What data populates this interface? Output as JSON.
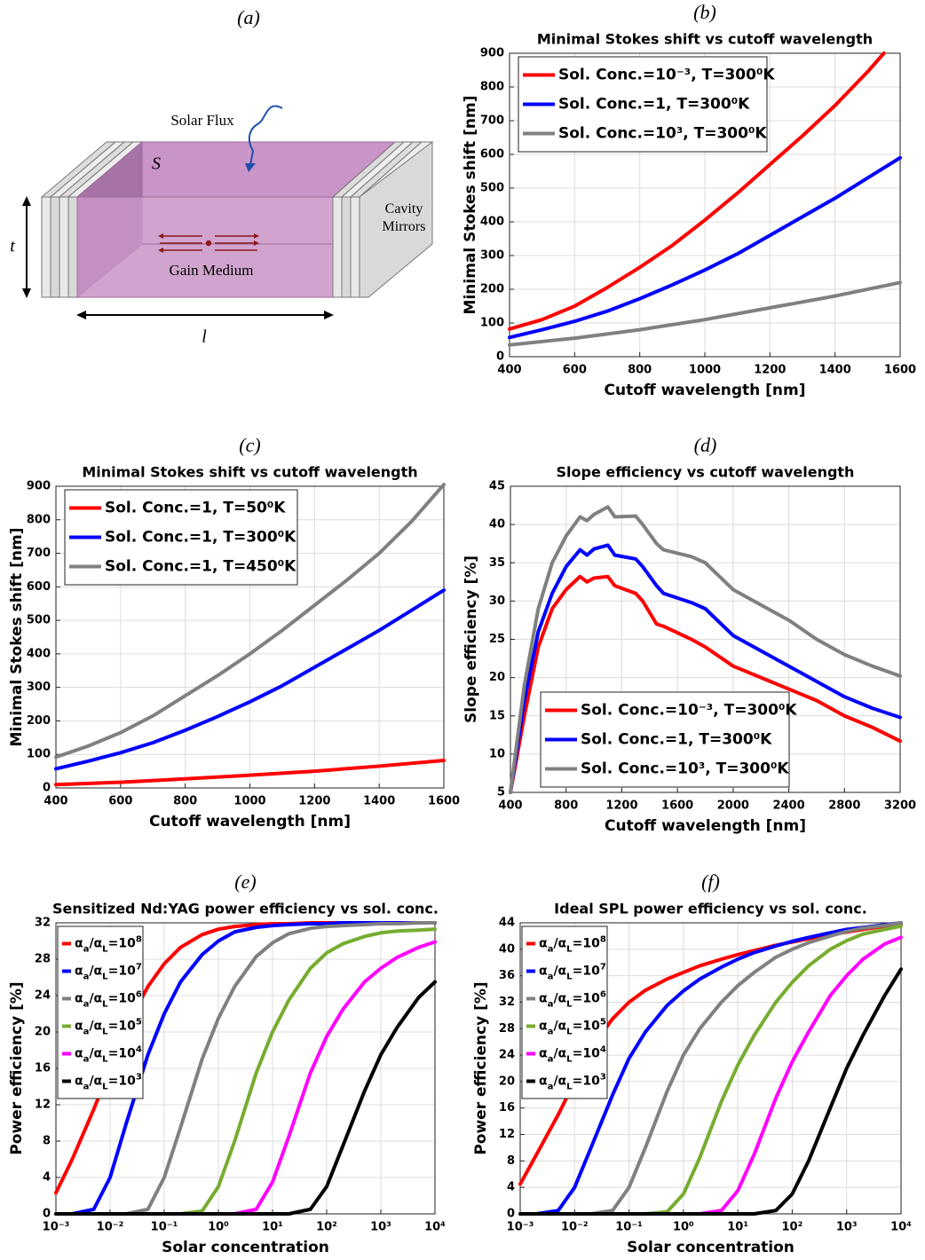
{
  "diagram": {
    "label": "(a)",
    "solar_flux": "Solar Flux",
    "surface": "S",
    "thickness": "t",
    "length": "l",
    "cavity_mirrors": [
      "Cavity",
      "Mirrors"
    ],
    "gain_medium": "Gain Medium"
  },
  "chart_data": [
    {
      "type": "line",
      "label": "(b)",
      "title": "Minimal Stokes shift vs cutoff wavelength",
      "xlabel": "Cutoff wavelength [nm]",
      "ylabel": "Minimal Stokes shift [nm]",
      "xlim": [
        400,
        1600
      ],
      "xticks": [
        400,
        600,
        800,
        1000,
        1200,
        1400,
        1600
      ],
      "ylim": [
        0,
        900
      ],
      "yticks": [
        0,
        100,
        200,
        300,
        400,
        500,
        600,
        700,
        800,
        900
      ],
      "grid": true,
      "legend": "upper left",
      "series": [
        {
          "name": "Sol. Conc.=10⁻³, T=300⁰K",
          "color": "#ff0000",
          "x": [
            400,
            500,
            600,
            700,
            800,
            900,
            1000,
            1100,
            1200,
            1300,
            1400,
            1500,
            1550
          ],
          "values": [
            82,
            110,
            150,
            205,
            265,
            330,
            405,
            485,
            570,
            655,
            745,
            845,
            900
          ]
        },
        {
          "name": "Sol. Conc.=1, T=300⁰K",
          "color": "#0000ff",
          "x": [
            400,
            500,
            600,
            700,
            800,
            900,
            1000,
            1100,
            1200,
            1300,
            1400,
            1500,
            1600
          ],
          "values": [
            57,
            80,
            105,
            135,
            172,
            213,
            257,
            305,
            360,
            415,
            470,
            530,
            590
          ]
        },
        {
          "name": "Sol. Conc.=10³, T=300⁰K",
          "color": "#808080",
          "x": [
            400,
            600,
            800,
            1000,
            1200,
            1400,
            1600
          ],
          "values": [
            35,
            55,
            80,
            110,
            145,
            180,
            220
          ]
        }
      ]
    },
    {
      "type": "line",
      "label": "(c)",
      "title": "Minimal Stokes shift vs cutoff wavelength",
      "xlabel": "Cutoff wavelength [nm]",
      "ylabel": "Minimal Stokes shift [nm]",
      "xlim": [
        400,
        1600
      ],
      "xticks": [
        400,
        600,
        800,
        1000,
        1200,
        1400,
        1600
      ],
      "ylim": [
        0,
        900
      ],
      "yticks": [
        0,
        100,
        200,
        300,
        400,
        500,
        600,
        700,
        800,
        900
      ],
      "grid": true,
      "legend": "upper left",
      "series": [
        {
          "name": "Sol. Conc.=1, T=50⁰K",
          "color": "#ff0000",
          "x": [
            400,
            600,
            800,
            1000,
            1200,
            1400,
            1600
          ],
          "values": [
            10,
            17,
            27,
            38,
            50,
            65,
            82
          ]
        },
        {
          "name": "Sol. Conc.=1, T=300⁰K",
          "color": "#0000ff",
          "x": [
            400,
            500,
            600,
            700,
            800,
            900,
            1000,
            1100,
            1200,
            1300,
            1400,
            1500,
            1600
          ],
          "values": [
            57,
            80,
            105,
            135,
            172,
            213,
            257,
            305,
            360,
            415,
            470,
            530,
            590
          ]
        },
        {
          "name": "Sol. Conc.=1, T=450⁰K",
          "color": "#808080",
          "x": [
            400,
            500,
            600,
            700,
            800,
            900,
            1000,
            1100,
            1200,
            1300,
            1400,
            1500,
            1600
          ],
          "values": [
            92,
            125,
            165,
            215,
            275,
            335,
            400,
            470,
            545,
            620,
            700,
            795,
            905
          ]
        }
      ]
    },
    {
      "type": "line",
      "label": "(d)",
      "title": "Slope efficiency vs cutoff wavelength",
      "xlabel": "Cutoff wavelength [nm]",
      "ylabel": "Slope efficiency [%]",
      "xlim": [
        400,
        3200
      ],
      "xticks": [
        400,
        800,
        1200,
        1600,
        2000,
        2400,
        2800,
        3200
      ],
      "ylim": [
        5,
        45
      ],
      "yticks": [
        5,
        10,
        15,
        20,
        25,
        30,
        35,
        40,
        45
      ],
      "grid": true,
      "legend": "lower left",
      "x": [
        400,
        500,
        600,
        700,
        800,
        900,
        950,
        1000,
        1100,
        1150,
        1300,
        1350,
        1450,
        1500,
        1700,
        1800,
        2000,
        2200,
        2400,
        2600,
        2800,
        3000,
        3200
      ],
      "series": [
        {
          "name": "Sol. Conc.=10⁻³, T=300⁰K",
          "color": "#ff0000",
          "values": [
            5,
            15,
            24,
            29,
            31.5,
            33.2,
            32.5,
            33,
            33.2,
            32,
            31,
            30,
            27,
            26.7,
            25,
            24,
            21.5,
            20,
            18.5,
            17,
            15,
            13.5,
            11.7
          ]
        },
        {
          "name": "Sol. Conc.=1, T=300⁰K",
          "color": "#0000ff",
          "values": [
            5,
            17,
            26,
            31,
            34.5,
            36.7,
            36,
            36.8,
            37.3,
            36,
            35.5,
            34.5,
            32,
            31,
            29.8,
            29,
            25.5,
            23.5,
            21.5,
            19.5,
            17.5,
            16,
            14.8
          ]
        },
        {
          "name": "Sol. Conc.=10³, T=300⁰K",
          "color": "#808080",
          "values": [
            5,
            19,
            29,
            35,
            38.5,
            41,
            40.5,
            41.3,
            42.3,
            41,
            41.1,
            40,
            37.5,
            36.7,
            35.8,
            35,
            31.5,
            29.5,
            27.5,
            25,
            23,
            21.5,
            20.2
          ]
        }
      ]
    },
    {
      "type": "line",
      "label": "(e)",
      "title": "Sensitized Nd:YAG power efficiency vs sol. conc.",
      "xlabel": "Solar concentration",
      "ylabel": "Power efficiency [%]",
      "xscale": "log",
      "xlim": [
        0.001,
        10000
      ],
      "xticks": [
        {
          "value": 0.001,
          "label": "10⁻³"
        },
        {
          "value": 0.01,
          "label": "10⁻²"
        },
        {
          "value": 0.1,
          "label": "10⁻¹"
        },
        {
          "value": 1,
          "label": "10⁰"
        },
        {
          "value": 10,
          "label": "10¹"
        },
        {
          "value": 100,
          "label": "10²"
        },
        {
          "value": 1000,
          "label": "10³"
        },
        {
          "value": 10000,
          "label": "10⁴"
        }
      ],
      "ylim": [
        0,
        32
      ],
      "yticks": [
        0,
        4,
        8,
        12,
        16,
        20,
        24,
        28,
        32
      ],
      "grid": true,
      "legend": "upper left",
      "x": [
        0.001,
        0.002,
        0.005,
        0.01,
        0.02,
        0.05,
        0.1,
        0.2,
        0.5,
        1,
        2,
        5,
        10,
        20,
        50,
        100,
        200,
        500,
        1000,
        2000,
        5000,
        10000
      ],
      "series": [
        {
          "name": [
            "α",
            "a",
            "/α",
            "L",
            "=10",
            "8"
          ],
          "color": "#ff0000",
          "values": [
            2.3,
            6,
            11.5,
            16,
            20.5,
            25,
            27.5,
            29.3,
            30.7,
            31.3,
            31.6,
            31.8,
            31.9,
            31.9,
            32,
            32,
            32,
            32,
            32,
            32,
            32,
            32
          ]
        },
        {
          "name": [
            "α",
            "a",
            "/α",
            "L",
            "=10",
            "7"
          ],
          "color": "#0000ff",
          "values": [
            0,
            0,
            0.5,
            4,
            10,
            17.5,
            22,
            25.5,
            28.5,
            30,
            31,
            31.5,
            31.7,
            31.8,
            31.9,
            31.9,
            32,
            32,
            32,
            32,
            32,
            32
          ]
        },
        {
          "name": [
            "α",
            "a",
            "/α",
            "L",
            "=10",
            "6"
          ],
          "color": "#808080",
          "values": [
            0,
            0,
            0,
            0,
            0,
            0.5,
            4,
            9.5,
            17,
            21.5,
            25,
            28.3,
            29.8,
            30.8,
            31.4,
            31.6,
            31.7,
            31.8,
            31.9,
            31.9,
            32,
            32
          ]
        },
        {
          "name": [
            "α",
            "a",
            "/α",
            "L",
            "=10",
            "5"
          ],
          "color": "#77ac30",
          "values": [
            0,
            0,
            0,
            0,
            0,
            0,
            0,
            0,
            0.3,
            3,
            8,
            15.5,
            20,
            23.5,
            27,
            28.7,
            29.7,
            30.5,
            30.9,
            31.1,
            31.2,
            31.3
          ]
        },
        {
          "name": [
            "α",
            "a",
            "/α",
            "L",
            "=10",
            "4"
          ],
          "color": "#ff00ff",
          "values": [
            0,
            0,
            0,
            0,
            0,
            0,
            0,
            0,
            0,
            0,
            0,
            0.5,
            3.5,
            8.5,
            15.5,
            19.5,
            22.5,
            25.5,
            27,
            28.2,
            29.3,
            29.9
          ]
        },
        {
          "name": [
            "α",
            "a",
            "/α",
            "L",
            "=10",
            "3"
          ],
          "color": "#000000",
          "values": [
            0,
            0,
            0,
            0,
            0,
            0,
            0,
            0,
            0,
            0,
            0,
            0,
            0,
            0,
            0.5,
            3,
            7.5,
            13.5,
            17.5,
            20.5,
            23.8,
            25.5
          ]
        }
      ]
    },
    {
      "type": "line",
      "label": "(f)",
      "title": "Ideal SPL power efficiency vs sol. conc.",
      "xlabel": "Solar concentration",
      "ylabel": "Power efficiency [%]",
      "xscale": "log",
      "xlim": [
        0.001,
        10000
      ],
      "xticks": [
        {
          "value": 0.001,
          "label": "10⁻³"
        },
        {
          "value": 0.01,
          "label": "10⁻²"
        },
        {
          "value": 0.1,
          "label": "10⁻¹"
        },
        {
          "value": 1,
          "label": "10⁰"
        },
        {
          "value": 10,
          "label": "10¹"
        },
        {
          "value": 100,
          "label": "10²"
        },
        {
          "value": 1000,
          "label": "10³"
        },
        {
          "value": 10000,
          "label": "10⁴"
        }
      ],
      "ylim": [
        0,
        44
      ],
      "yticks": [
        0,
        4,
        8,
        12,
        16,
        20,
        24,
        28,
        32,
        36,
        40,
        44
      ],
      "grid": true,
      "legend": "upper left",
      "x": [
        0.001,
        0.002,
        0.005,
        0.01,
        0.02,
        0.05,
        0.1,
        0.2,
        0.5,
        1,
        2,
        5,
        10,
        20,
        50,
        100,
        200,
        500,
        1000,
        2000,
        5000,
        10000
      ],
      "series": [
        {
          "name": [
            "α",
            "a",
            "/α",
            "L",
            "=10",
            "8"
          ],
          "color": "#ff0000",
          "values": [
            4.5,
            9,
            15,
            20,
            25,
            29.5,
            32,
            33.8,
            35.5,
            36.5,
            37.5,
            38.5,
            39.2,
            39.8,
            40.6,
            41.1,
            41.6,
            42.2,
            42.6,
            43,
            43.5,
            43.8
          ]
        },
        {
          "name": [
            "α",
            "a",
            "/α",
            "L",
            "=10",
            "7"
          ],
          "color": "#0000ff",
          "values": [
            0,
            0,
            0.5,
            4,
            10,
            18,
            23.5,
            27.5,
            31.5,
            33.7,
            35.5,
            37.3,
            38.5,
            39.5,
            40.5,
            41.2,
            41.8,
            42.5,
            43,
            43.3,
            43.7,
            44
          ]
        },
        {
          "name": [
            "α",
            "a",
            "/α",
            "L",
            "=10",
            "6"
          ],
          "color": "#808080",
          "values": [
            0,
            0,
            0,
            0,
            0,
            0.5,
            4,
            10,
            18.5,
            24,
            28,
            32,
            34.5,
            36.5,
            38.8,
            40,
            41,
            42,
            42.7,
            43.2,
            43.6,
            44
          ]
        },
        {
          "name": [
            "α",
            "a",
            "/α",
            "L",
            "=10",
            "5"
          ],
          "color": "#77ac30",
          "values": [
            0,
            0,
            0,
            0,
            0,
            0,
            0,
            0,
            0.3,
            3,
            8.5,
            17,
            22.5,
            27,
            32,
            35,
            37.5,
            40,
            41.3,
            42.3,
            43,
            43.5
          ]
        },
        {
          "name": [
            "α",
            "a",
            "/α",
            "L",
            "=10",
            "4"
          ],
          "color": "#ff00ff",
          "values": [
            0,
            0,
            0,
            0,
            0,
            0,
            0,
            0,
            0,
            0,
            0,
            0.5,
            3.5,
            9,
            17.5,
            23,
            27.5,
            33,
            36,
            38.5,
            40.8,
            41.8
          ]
        },
        {
          "name": [
            "α",
            "a",
            "/α",
            "L",
            "=10",
            "3"
          ],
          "color": "#000000",
          "values": [
            0,
            0,
            0,
            0,
            0,
            0,
            0,
            0,
            0,
            0,
            0,
            0,
            0,
            0,
            0.5,
            3,
            8,
            16,
            22,
            27,
            33,
            37
          ]
        }
      ]
    }
  ]
}
